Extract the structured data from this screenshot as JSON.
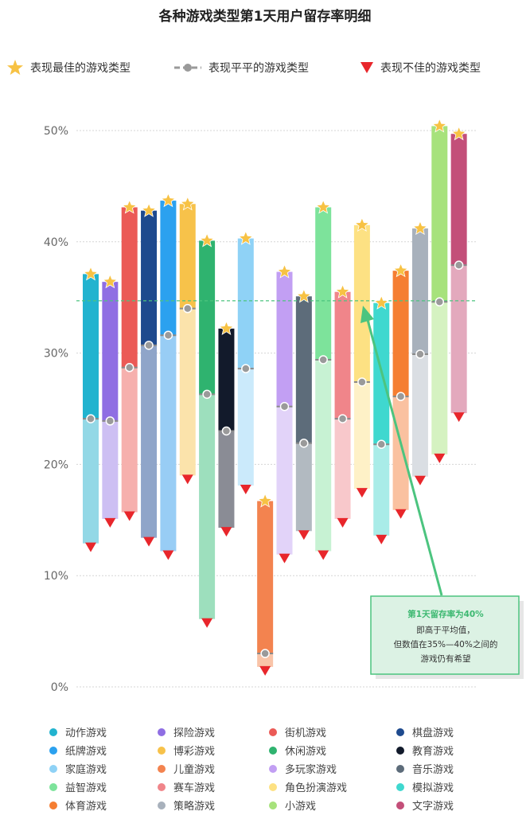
{
  "title": "各种游戏类型第1天用户留存率明细",
  "top_legend": {
    "best": "表现最佳的游戏类型",
    "avg": "表现平平的游戏类型",
    "worst": "表现不佳的游戏类型",
    "best_color": "#f7c244",
    "avg_color": "#9a9a9a",
    "worst_color": "#e8262b"
  },
  "annotation": {
    "line1": "第1天留存率为40%",
    "line2": "即高于平均值，",
    "line3": "但数值在35%—40%之间的",
    "line4": "游戏仍有希望",
    "border_color": "#4cc47f",
    "bg_color": "#dcf2e4"
  },
  "chart_data": {
    "type": "bar",
    "title": "各种游戏类型第1天用户留存率明细",
    "ylim": [
      0,
      50
    ],
    "yticks": [
      "0%",
      "10%",
      "20%",
      "30%",
      "40%",
      "50%"
    ],
    "ytick_values": [
      0,
      10,
      20,
      30,
      40,
      50
    ],
    "grid": true,
    "average_line": 34.7,
    "order": [
      "动作游戏",
      "探险游戏",
      "街机游戏",
      "棋盘游戏",
      "纸牌游戏",
      "博彩游戏",
      "休闲游戏",
      "教育游戏",
      "家庭游戏",
      "儿童游戏",
      "多玩家游戏",
      "音乐游戏",
      "益智游戏",
      "赛车游戏",
      "角色扮演游戏",
      "模拟游戏",
      "体育游戏",
      "策略游戏",
      "小游戏",
      "文字游戏"
    ],
    "series": [
      {
        "name": "动作游戏",
        "best": 37.1,
        "avg": 24.1,
        "worst": 12.9,
        "color": "#22b3cf",
        "light": "#93d8e6"
      },
      {
        "name": "探险游戏",
        "best": 36.4,
        "avg": 23.9,
        "worst": 15.1,
        "color": "#8f6ee3",
        "light": "#cdbff3"
      },
      {
        "name": "街机游戏",
        "best": 43.1,
        "avg": 28.7,
        "worst": 15.7,
        "color": "#eb5a56",
        "light": "#f6b0ad"
      },
      {
        "name": "棋盘游戏",
        "best": 42.8,
        "avg": 30.7,
        "worst": 13.4,
        "color": "#1e4a8e",
        "light": "#8fa5c9"
      },
      {
        "name": "纸牌游戏",
        "best": 43.7,
        "avg": 31.6,
        "worst": 12.2,
        "color": "#2ba1ef",
        "light": "#98cdf5"
      },
      {
        "name": "博彩游戏",
        "best": 43.4,
        "avg": 34.0,
        "worst": 19.0,
        "color": "#f7c24a",
        "light": "#fbe3ab"
      },
      {
        "name": "休闲游戏",
        "best": 40.1,
        "avg": 26.3,
        "worst": 6.1,
        "color": "#2fb36f",
        "light": "#9ddfbd"
      },
      {
        "name": "教育游戏",
        "best": 32.2,
        "avg": 23.0,
        "worst": 14.3,
        "color": "#121a2b",
        "light": "#8a8c95"
      },
      {
        "name": "家庭游戏",
        "best": 40.3,
        "avg": 28.6,
        "worst": 18.1,
        "color": "#8fd2f6",
        "light": "#cbeafb"
      },
      {
        "name": "儿童游戏",
        "best": 16.7,
        "avg": 3.0,
        "worst": 1.8,
        "color": "#f3834f",
        "light": "#f9c4a8"
      },
      {
        "name": "多玩家游戏",
        "best": 37.3,
        "avg": 25.2,
        "worst": 11.9,
        "color": "#c29ff3",
        "light": "#e2d3f9"
      },
      {
        "name": "音乐游戏",
        "best": 35.1,
        "avg": 21.9,
        "worst": 14.0,
        "color": "#5d6c7a",
        "light": "#b2bac1"
      },
      {
        "name": "益智游戏",
        "best": 43.1,
        "avg": 29.4,
        "worst": 12.2,
        "color": "#7de39b",
        "light": "#c7f2d3"
      },
      {
        "name": "赛车游戏",
        "best": 35.5,
        "avg": 24.1,
        "worst": 15.1,
        "color": "#f0858a",
        "light": "#f8c8cb"
      },
      {
        "name": "角色扮演游戏",
        "best": 41.5,
        "avg": 27.4,
        "worst": 17.8,
        "color": "#fde183",
        "light": "#fef1c7"
      },
      {
        "name": "模拟游戏",
        "best": 34.5,
        "avg": 21.8,
        "worst": 13.6,
        "color": "#3fd8cf",
        "light": "#a9ece8"
      },
      {
        "name": "体育游戏",
        "best": 37.4,
        "avg": 26.1,
        "worst": 15.9,
        "color": "#f57e32",
        "light": "#fac1a0"
      },
      {
        "name": "策略游戏",
        "best": 41.2,
        "avg": 29.9,
        "worst": 18.9,
        "color": "#a8b1bc",
        "light": "#dadee3"
      },
      {
        "name": "小游戏",
        "best": 50.4,
        "avg": 34.6,
        "worst": 20.9,
        "color": "#a7e27c",
        "light": "#d5f2c1"
      },
      {
        "name": "文字游戏",
        "best": 49.7,
        "avg": 37.9,
        "worst": 24.6,
        "color": "#c34f79",
        "light": "#e3a9bd"
      }
    ]
  }
}
